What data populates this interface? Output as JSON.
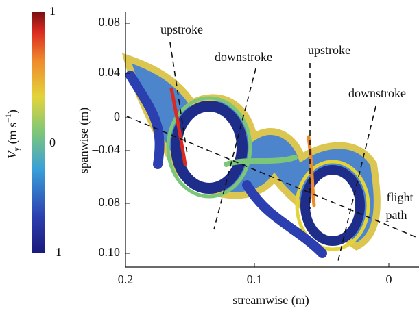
{
  "colorbar": {
    "label": {
      "symbol": "V",
      "subscript": "y",
      "unit": "(m s",
      "exponent": "−1",
      "close": ")"
    },
    "ticks": [
      "1",
      "0",
      "–1"
    ]
  },
  "axes": {
    "x_label": "streamwise (m)",
    "y_label": "spanwise (m)",
    "x_ticks": [
      "0.2",
      "0.1",
      "0"
    ],
    "y_ticks": [
      "0.08",
      "0.04",
      "0",
      "–0.04",
      "–0.08",
      "–0.10"
    ]
  },
  "annotations": [
    "upstroke",
    "downstroke",
    "upstroke",
    "downstroke",
    "flight",
    "path"
  ]
}
